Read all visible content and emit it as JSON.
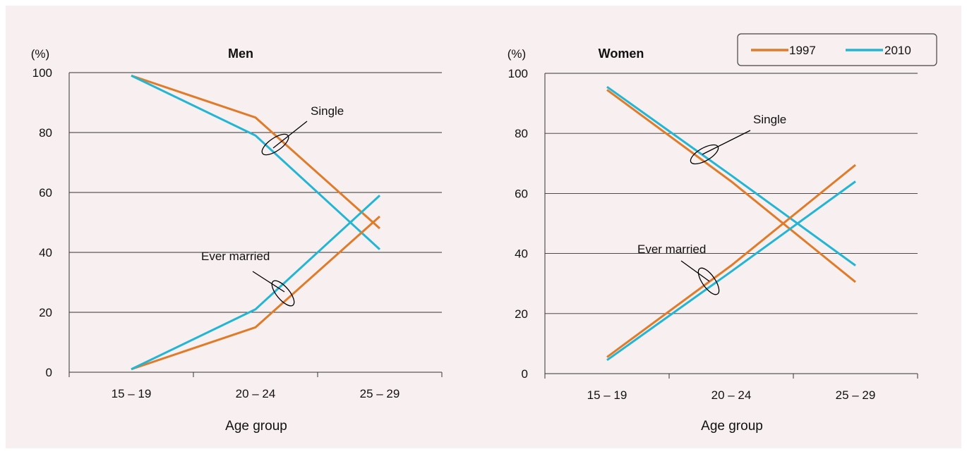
{
  "colors": {
    "background": "#f8f0f0",
    "series_1997": "#e07b2a",
    "series_2010": "#23b6d4",
    "grid": "#333333"
  },
  "legend": {
    "items": [
      {
        "label": "1997",
        "color": "#e07b2a"
      },
      {
        "label": "2010",
        "color": "#23b6d4"
      }
    ]
  },
  "chart_data": [
    {
      "type": "line",
      "title": "Men",
      "ylabel": "(%)",
      "xlabel": "Age group",
      "categories": [
        "15 – 19",
        "20 – 24",
        "25 – 29"
      ],
      "ylim": [
        0,
        100
      ],
      "yticks": [
        0,
        20,
        40,
        60,
        80,
        100
      ],
      "grid": true,
      "series": [
        {
          "name": "1997",
          "group": "Single",
          "values": [
            99,
            85,
            48
          ]
        },
        {
          "name": "2010",
          "group": "Single",
          "values": [
            99,
            79,
            41
          ]
        },
        {
          "name": "1997",
          "group": "Ever married",
          "values": [
            1,
            15,
            52
          ]
        },
        {
          "name": "2010",
          "group": "Ever married",
          "values": [
            1,
            21,
            59
          ]
        }
      ],
      "annotations": [
        {
          "text": "Single",
          "group": "Single"
        },
        {
          "text": "Ever married",
          "group": "Ever married"
        }
      ]
    },
    {
      "type": "line",
      "title": "Women",
      "ylabel": "(%)",
      "xlabel": "Age group",
      "categories": [
        "15 – 19",
        "20 – 24",
        "25 – 29"
      ],
      "ylim": [
        0,
        100
      ],
      "yticks": [
        0,
        20,
        40,
        60,
        80,
        100
      ],
      "grid": true,
      "legend_position": "top-right",
      "series": [
        {
          "name": "1997",
          "group": "Single",
          "values": [
            94.5,
            64,
            30.5
          ]
        },
        {
          "name": "2010",
          "group": "Single",
          "values": [
            95.5,
            66,
            36
          ]
        },
        {
          "name": "1997",
          "group": "Ever married",
          "values": [
            5.5,
            36,
            69.5
          ]
        },
        {
          "name": "2010",
          "group": "Ever married",
          "values": [
            4.5,
            34,
            64
          ]
        }
      ],
      "annotations": [
        {
          "text": "Single",
          "group": "Single"
        },
        {
          "text": "Ever married",
          "group": "Ever married"
        }
      ]
    }
  ]
}
